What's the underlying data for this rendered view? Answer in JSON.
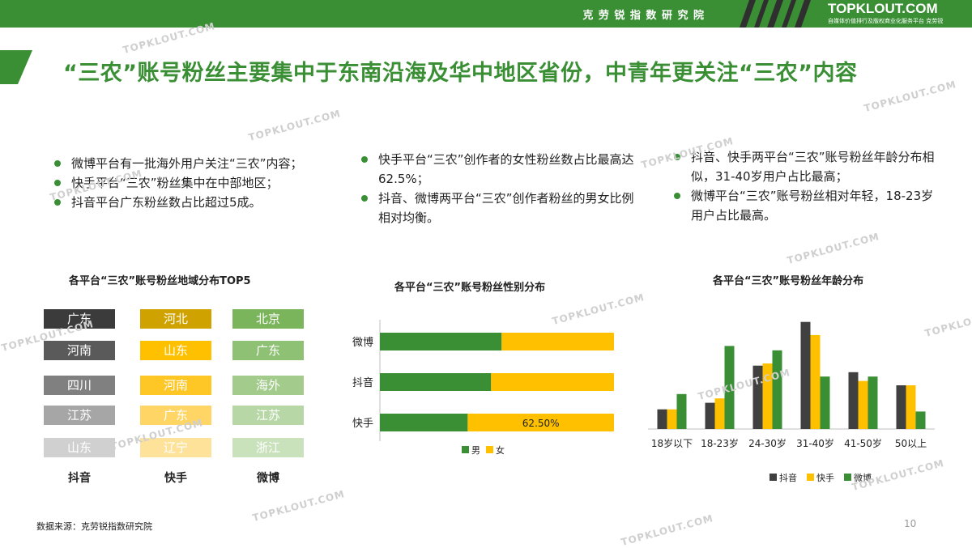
{
  "header": {
    "institute": "克 劳 锐 指 数 研 究 院",
    "logo": "TOPKLOUT.COM",
    "logo_sub": "自媒体价值排行及版权商业化服务平台 克劳锐"
  },
  "title": "“三农”账号粉丝主要集中于东南沿海及华中地区省份，中青年更关注“三农”内容",
  "bullets": {
    "col1": [
      "微博平台有一批海外用户关注“三农”内容；",
      "快手平台“三农”粉丝集中在中部地区；",
      "抖音平台广东粉丝数占比超过5成。"
    ],
    "col2": [
      "快手平台“三农”创作者的女性粉丝数占比最高达62.5%；",
      "抖音、微博两平台“三农”创作者粉丝的男女比例相对均衡。"
    ],
    "col3": [
      "抖音、快手两平台“三农”账号粉丝年龄分布相似，31-40岁用户占比最高；",
      "微博平台“三农”账号粉丝相对年轻，18-23岁用户占比最高。"
    ]
  },
  "colors": {
    "douyin": "#404040",
    "kuaishou": "#ffc000",
    "weibo": "#3a8f35",
    "female": "#ffc000",
    "male": "#3a8f35"
  },
  "chart_data": [
    {
      "type": "table",
      "title": "各平台“三农”账号粉丝地域分布TOP5",
      "columns": [
        "抖音",
        "快手",
        "微博"
      ],
      "rows": [
        [
          "广东",
          "河北",
          "北京"
        ],
        [
          "河南",
          "山东",
          "广东"
        ],
        [
          "四川",
          "河南",
          "海外"
        ],
        [
          "江苏",
          "广东",
          "江苏"
        ],
        [
          "山东",
          "辽宁",
          "浙江"
        ]
      ]
    },
    {
      "type": "bar",
      "orientation": "horizontal",
      "stacked": true,
      "title": "各平台“三农”账号粉丝性别分布",
      "categories": [
        "微博",
        "抖音",
        "快手"
      ],
      "series": [
        {
          "name": "男",
          "values": [
            52,
            47.5,
            37.5
          ]
        },
        {
          "name": "女",
          "values": [
            48,
            52.5,
            62.5
          ]
        }
      ],
      "data_labels": [
        {
          "category": "快手",
          "series": "女",
          "text": "62.50%"
        }
      ],
      "xlim": [
        0,
        100
      ],
      "legend": "bottom"
    },
    {
      "type": "bar",
      "title": "各平台“三农”账号粉丝年龄分布",
      "categories": [
        "18岁以下",
        "18-23岁",
        "24-30岁",
        "31-40岁",
        "41-50岁",
        "50以上"
      ],
      "series": [
        {
          "name": "抖音",
          "values": [
            4.5,
            6,
            14.5,
            24.5,
            13,
            10
          ]
        },
        {
          "name": "快手",
          "values": [
            4.5,
            7,
            15,
            21.5,
            11,
            10
          ]
        },
        {
          "name": "微博",
          "values": [
            8,
            19,
            18,
            12,
            12,
            4
          ]
        }
      ],
      "ylim": [
        0,
        25
      ],
      "legend": "bottom"
    }
  ],
  "footer": {
    "source": "数据来源：克劳锐指数研究院",
    "page": "10"
  },
  "watermark": "TOPKLOUT.COM"
}
